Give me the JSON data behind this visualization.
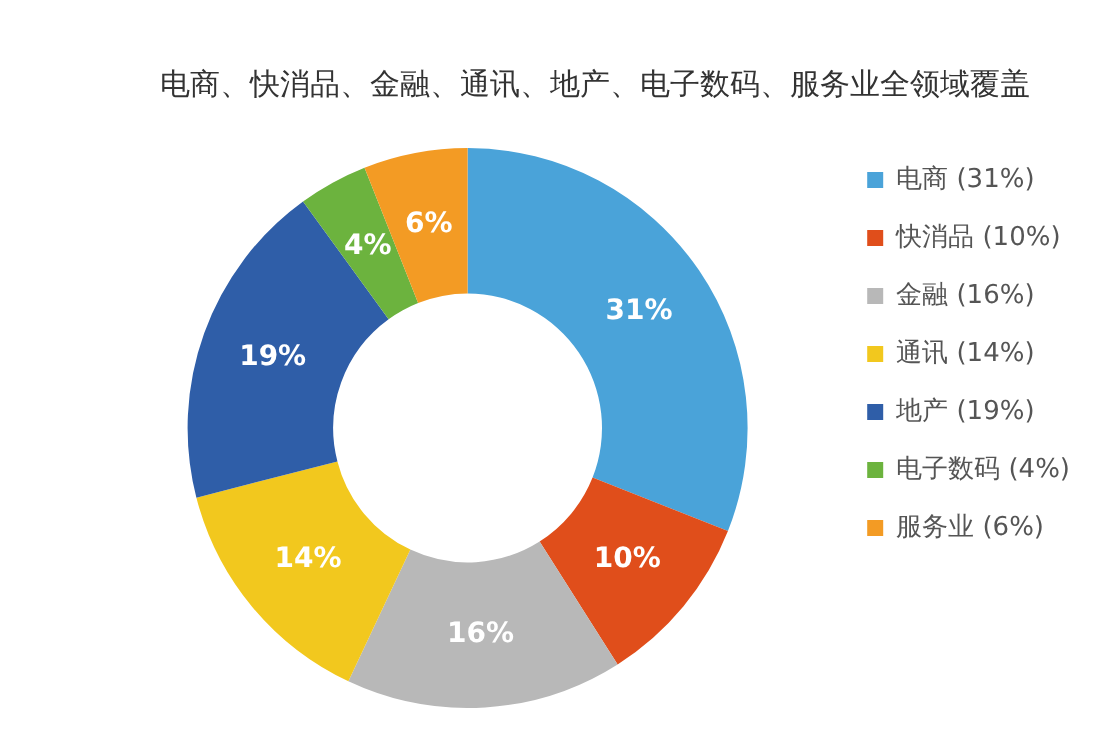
{
  "chart_data": {
    "type": "donut",
    "title": "电商、快消品、金融、通讯、地产、电子数码、服务业全领域覆盖",
    "categories": [
      "电商 (31%)",
      "快消品 (10%)",
      "金融 (16%)",
      "通讯 (14%)",
      "地产 (19%)",
      "电子数码 (4%)",
      "服务业 (6%)"
    ],
    "values": [
      31,
      10,
      16,
      14,
      19,
      4,
      6
    ],
    "colors": [
      "#4aa3d9",
      "#e04e1b",
      "#b8b8b8",
      "#f2c81e",
      "#2f5ea8",
      "#6cb33e",
      "#f39b24"
    ],
    "value_labels": [
      "31%",
      "10%",
      "16%",
      "14%",
      "19%",
      "4%",
      "6%"
    ],
    "legend": "right"
  }
}
